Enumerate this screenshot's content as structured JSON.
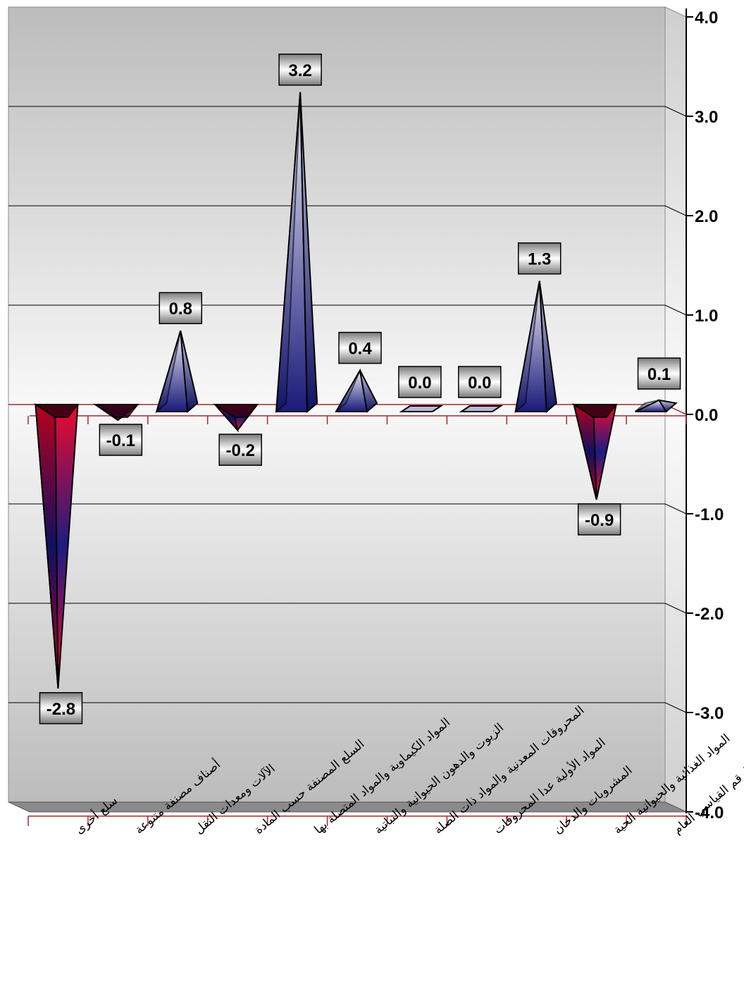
{
  "chart_data": {
    "type": "bar",
    "title": "",
    "xlabel": "",
    "ylabel": "",
    "categories": [
      "سلع أخرى",
      "أصناف مصنفة متنوعة",
      "الآلات ومعدات النقل",
      "السلع المصنفة حسب المادة",
      "المواد الكيماوية والمواد المتصلة بها",
      "الزيوت والدهون الحيوانية والنباتية",
      "المحروقات المعدنية والمواد ذات الصلة",
      "المواد الأولية عدا المحروقات",
      "المشروبات والدخان",
      "المواد الغذائية والحيوانية الحية",
      "الرقم القياسي العام"
    ],
    "values": [
      -2.8,
      -0.1,
      0.8,
      -0.2,
      3.2,
      0.4,
      0.0,
      0.0,
      1.3,
      -0.9,
      0.1
    ],
    "data_labels": [
      "-2.8",
      "-0.1",
      "0.8",
      "-0.2",
      "3.2",
      "0.4",
      "0.0",
      "0.0",
      "1.3",
      "-0.9",
      "0.1"
    ],
    "ylim": [
      -4.0,
      4.0
    ],
    "yticks": [
      4.0,
      3.0,
      2.0,
      1.0,
      0.0,
      -1.0,
      -2.0,
      -3.0,
      -4.0
    ],
    "ytick_labels": [
      "4.0",
      "3.0",
      "2.0",
      "1.0",
      "0.0",
      "-1.0",
      "-2.0",
      "-3.0",
      "-4.0"
    ],
    "axis_position": "right",
    "grid": true,
    "legend": "none",
    "colors": {
      "positive_top": "#1a1a7a",
      "positive_bottom": "#e6e6f5",
      "negative_edge": "#e8002a",
      "negative_mid": "#1a1a80",
      "axis_line": "#a52a2a",
      "wall_light": "#f5f5f5",
      "wall_dark": "#bdbdbd",
      "floor": "#8a8a8a"
    }
  }
}
